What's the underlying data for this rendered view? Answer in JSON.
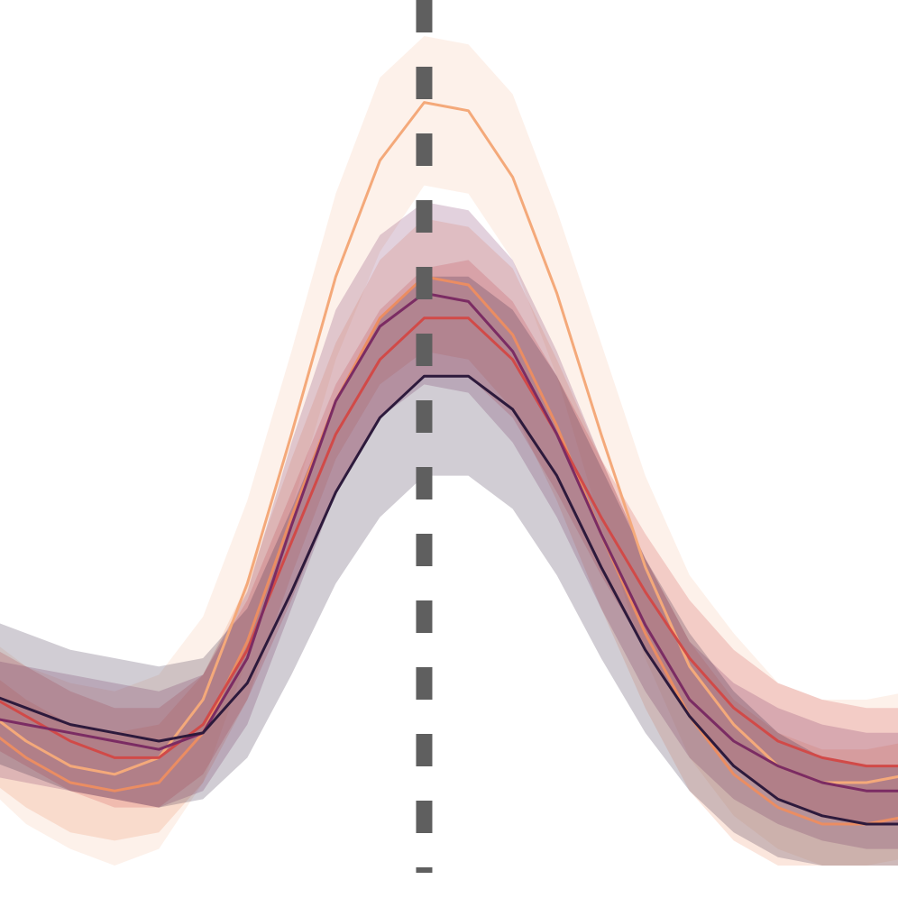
{
  "chart_data": {
    "type": "line",
    "title": "",
    "xlabel": "",
    "ylabel": "",
    "grid": false,
    "legend": "none",
    "x": [
      -10,
      -9,
      -8,
      -7,
      -6,
      -5,
      -4,
      -3,
      -2,
      -1,
      0,
      1,
      2,
      3,
      4,
      5,
      6,
      7,
      8,
      9,
      10,
      11
    ],
    "reference_line": {
      "x": 0,
      "style": "dashed",
      "color": "#5f5f5f"
    },
    "series": [
      {
        "color": "#f4a97a",
        "values": [
          0.19,
          0.15,
          0.12,
          0.11,
          0.13,
          0.2,
          0.34,
          0.52,
          0.71,
          0.85,
          0.92,
          0.91,
          0.83,
          0.69,
          0.52,
          0.36,
          0.24,
          0.17,
          0.12,
          0.1,
          0.1,
          0.11
        ],
        "lower": [
          0.1,
          0.05,
          0.02,
          0.0,
          0.02,
          0.1,
          0.25,
          0.43,
          0.61,
          0.74,
          0.82,
          0.81,
          0.73,
          0.59,
          0.41,
          0.25,
          0.13,
          0.06,
          0.02,
          0.0,
          0.0,
          0.01
        ],
        "upper": [
          0.28,
          0.24,
          0.22,
          0.21,
          0.23,
          0.3,
          0.44,
          0.62,
          0.81,
          0.95,
          1.0,
          0.99,
          0.93,
          0.79,
          0.63,
          0.47,
          0.35,
          0.28,
          0.22,
          0.2,
          0.2,
          0.21
        ]
      },
      {
        "color": "#eb8d62",
        "values": [
          0.17,
          0.13,
          0.1,
          0.09,
          0.1,
          0.16,
          0.27,
          0.42,
          0.56,
          0.66,
          0.71,
          0.7,
          0.64,
          0.53,
          0.4,
          0.28,
          0.18,
          0.11,
          0.07,
          0.05,
          0.05,
          0.06
        ],
        "lower": [
          0.11,
          0.07,
          0.04,
          0.03,
          0.04,
          0.1,
          0.2,
          0.35,
          0.49,
          0.58,
          0.62,
          0.61,
          0.55,
          0.44,
          0.31,
          0.19,
          0.09,
          0.03,
          0.0,
          0.0,
          0.0,
          0.0
        ],
        "upper": [
          0.24,
          0.2,
          0.17,
          0.16,
          0.17,
          0.23,
          0.34,
          0.49,
          0.63,
          0.73,
          0.78,
          0.77,
          0.72,
          0.61,
          0.49,
          0.37,
          0.27,
          0.2,
          0.16,
          0.14,
          0.14,
          0.15
        ]
      },
      {
        "color": "#d14a48",
        "values": [
          0.21,
          0.18,
          0.15,
          0.13,
          0.13,
          0.17,
          0.26,
          0.39,
          0.52,
          0.61,
          0.66,
          0.66,
          0.61,
          0.52,
          0.42,
          0.33,
          0.25,
          0.19,
          0.15,
          0.13,
          0.12,
          0.12
        ],
        "lower": [
          0.15,
          0.12,
          0.09,
          0.07,
          0.07,
          0.11,
          0.2,
          0.32,
          0.45,
          0.54,
          0.59,
          0.59,
          0.54,
          0.45,
          0.35,
          0.26,
          0.18,
          0.12,
          0.08,
          0.06,
          0.05,
          0.05
        ],
        "upper": [
          0.27,
          0.24,
          0.21,
          0.19,
          0.19,
          0.23,
          0.32,
          0.45,
          0.58,
          0.67,
          0.72,
          0.73,
          0.68,
          0.59,
          0.49,
          0.4,
          0.32,
          0.26,
          0.22,
          0.2,
          0.19,
          0.19
        ]
      },
      {
        "color": "#7b2c63",
        "values": [
          0.18,
          0.17,
          0.16,
          0.15,
          0.14,
          0.16,
          0.25,
          0.41,
          0.56,
          0.65,
          0.69,
          0.68,
          0.62,
          0.52,
          0.4,
          0.29,
          0.2,
          0.15,
          0.12,
          0.1,
          0.09,
          0.09
        ],
        "lower": [
          0.11,
          0.1,
          0.09,
          0.08,
          0.07,
          0.09,
          0.17,
          0.31,
          0.45,
          0.54,
          0.58,
          0.57,
          0.51,
          0.42,
          0.31,
          0.21,
          0.13,
          0.08,
          0.05,
          0.03,
          0.02,
          0.02
        ],
        "upper": [
          0.25,
          0.24,
          0.23,
          0.22,
          0.21,
          0.23,
          0.33,
          0.51,
          0.67,
          0.76,
          0.8,
          0.79,
          0.73,
          0.62,
          0.49,
          0.37,
          0.27,
          0.22,
          0.19,
          0.17,
          0.16,
          0.16
        ]
      },
      {
        "color": "#2d1a3c",
        "values": [
          0.21,
          0.19,
          0.17,
          0.16,
          0.15,
          0.16,
          0.22,
          0.33,
          0.45,
          0.54,
          0.59,
          0.59,
          0.55,
          0.47,
          0.36,
          0.26,
          0.18,
          0.12,
          0.08,
          0.06,
          0.05,
          0.05
        ],
        "lower": [
          0.13,
          0.11,
          0.09,
          0.08,
          0.07,
          0.08,
          0.13,
          0.23,
          0.34,
          0.42,
          0.47,
          0.47,
          0.43,
          0.35,
          0.25,
          0.16,
          0.09,
          0.04,
          0.01,
          0.0,
          0.0,
          0.0
        ],
        "upper": [
          0.3,
          0.28,
          0.26,
          0.25,
          0.24,
          0.25,
          0.31,
          0.43,
          0.56,
          0.66,
          0.71,
          0.71,
          0.67,
          0.59,
          0.48,
          0.37,
          0.28,
          0.21,
          0.16,
          0.13,
          0.12,
          0.12
        ]
      }
    ]
  }
}
